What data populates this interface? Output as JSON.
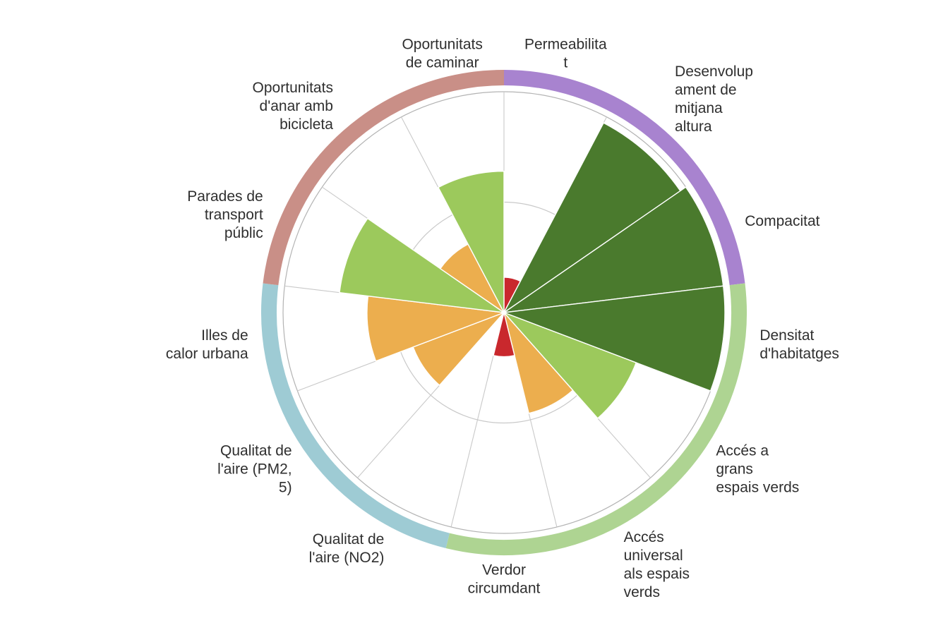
{
  "page": {
    "background": "#ffffff"
  },
  "chart_data": {
    "type": "polar_bar",
    "title": "",
    "direction": "clockwise",
    "start_angle_deg": 0,
    "rlim": [
      0,
      1
    ],
    "gridlines": [
      0.5,
      1.0
    ],
    "grid": {
      "inner_color": "#c9c9c9",
      "outer_color": "#b3b3b3",
      "wedge_outline": "#ffffff"
    },
    "legend_position": "none",
    "label_text_color": "#2f2f2f",
    "categories": [
      {
        "id": "permeabilitat",
        "label": "Permeabilitat",
        "label_lines": [
          "Permeabilita",
          "t"
        ],
        "value": 0.16,
        "color": "#c9282d"
      },
      {
        "id": "desenvolupament-mitjana-altura",
        "label": "Desenvolupament de mitjana altura",
        "label_lines": [
          "Desenvolup",
          "ament de",
          "mitjana",
          "altura"
        ],
        "value": 0.97,
        "color": "#4a7a2d"
      },
      {
        "id": "compacitat",
        "label": "Compacitat",
        "label_lines": [
          "Compacitat"
        ],
        "value": 1.0,
        "color": "#4a7a2d"
      },
      {
        "id": "densitat-habitatges",
        "label": "Densitat d'habitatges",
        "label_lines": [
          "Densitat",
          "d'habitatges"
        ],
        "value": 1.0,
        "color": "#4a7a2d"
      },
      {
        "id": "acces-grans-espais-verds",
        "label": "Accés a grans espais verds",
        "label_lines": [
          "Accés a",
          "grans",
          "espais verds"
        ],
        "value": 0.64,
        "color": "#9cc95c"
      },
      {
        "id": "acces-universal-espais-verds",
        "label": "Accés universal als espais verds",
        "label_lines": [
          "Accés",
          "universal",
          "als espais",
          "verds"
        ],
        "value": 0.47,
        "color": "#ecae4e"
      },
      {
        "id": "verdor-circumdant",
        "label": "Verdor circumdant",
        "label_lines": [
          "Verdor",
          "circumdant"
        ],
        "value": 0.2,
        "color": "#c9282d"
      },
      {
        "id": "qualitat-aire-no2",
        "label": "Qualitat de l'aire (NO2)",
        "label_lines": [
          "Qualitat de",
          "l'aire (NO2)"
        ],
        "value": 0,
        "color": null
      },
      {
        "id": "qualitat-aire-pm25",
        "label": "Qualitat de l'aire (PM2,5)",
        "label_lines": [
          "Qualitat de",
          "l'aire (PM2,",
          "5)"
        ],
        "value": 0.44,
        "color": "#ecae4e"
      },
      {
        "id": "illes-calor-urbana",
        "label": "Illes de calor urbana",
        "label_lines": [
          "Illes de",
          "calor urbana"
        ],
        "value": 0.62,
        "color": "#ecae4e"
      },
      {
        "id": "parades-transport-public",
        "label": "Parades de transport públic",
        "label_lines": [
          "Parades de",
          "transport",
          "públic"
        ],
        "value": 0.75,
        "color": "#9cc95c"
      },
      {
        "id": "oportunitats-bicicleta",
        "label": "Oportunitats d'anar amb bicicleta",
        "label_lines": [
          "Oportunitats",
          "d'anar amb",
          "bicicleta"
        ],
        "value": 0.35,
        "color": "#ecae4e"
      },
      {
        "id": "oportunitats-caminar",
        "label": "Oportunitats de caminar",
        "label_lines": [
          "Oportunitats",
          "de caminar"
        ],
        "value": 0.64,
        "color": "#9cc95c"
      }
    ],
    "ring_groups": [
      {
        "name": "purple",
        "color": "#a883cf",
        "from_index": 0,
        "to_index": 3
      },
      {
        "name": "green",
        "color": "#aed492",
        "from_index": 3,
        "to_index": 7
      },
      {
        "name": "blue",
        "color": "#9ecbd4",
        "from_index": 7,
        "to_index": 10
      },
      {
        "name": "rose",
        "color": "#c98f87",
        "from_index": 10,
        "to_index": 13
      }
    ]
  }
}
